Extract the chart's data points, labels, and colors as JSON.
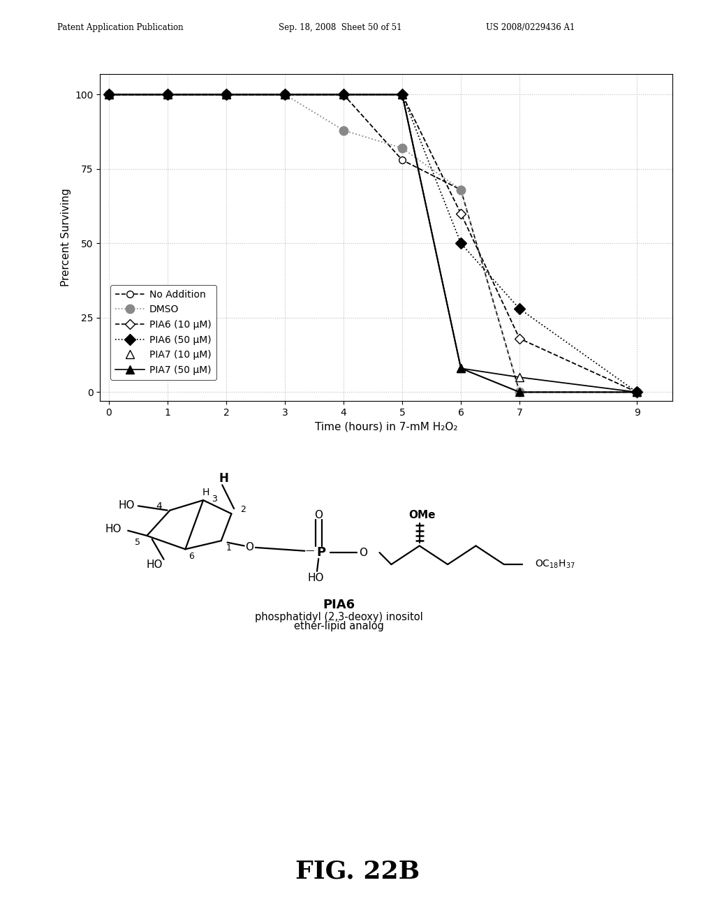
{
  "title_header_left": "Patent Application Publication",
  "title_header_mid": "Sep. 18, 2008  Sheet 50 of 51",
  "title_header_right": "US 2008/0229436 A1",
  "xlabel": "Time (hours) in 7-mM H₂O₂",
  "ylabel": "Prercent Surviving",
  "xticks": [
    0,
    1,
    2,
    3,
    4,
    5,
    6,
    7,
    9
  ],
  "yticks": [
    0,
    25,
    50,
    75,
    100
  ],
  "xlim": [
    -0.15,
    9.6
  ],
  "ylim": [
    -3,
    107
  ],
  "series": [
    {
      "label": "No Addition",
      "x": [
        0,
        1,
        2,
        3,
        4,
        5,
        6,
        7,
        9
      ],
      "y": [
        100,
        100,
        100,
        100,
        100,
        78,
        68,
        0,
        0
      ],
      "linestyle": "--",
      "marker": "o",
      "markerfacecolor": "white",
      "markeredgecolor": "black",
      "color": "black",
      "markersize": 7,
      "linewidth": 1.3
    },
    {
      "label": "DMSO",
      "x": [
        0,
        1,
        2,
        3,
        4,
        5,
        6,
        7,
        9
      ],
      "y": [
        100,
        100,
        100,
        100,
        88,
        82,
        68,
        0,
        0
      ],
      "linestyle": "dotted",
      "marker": "o",
      "markerfacecolor": "#888888",
      "markeredgecolor": "#888888",
      "color": "#888888",
      "markersize": 9,
      "linewidth": 1.3
    },
    {
      "label": "PIA6 (10 μM)",
      "x": [
        0,
        1,
        2,
        3,
        4,
        5,
        6,
        7,
        9
      ],
      "y": [
        100,
        100,
        100,
        100,
        100,
        100,
        60,
        18,
        0
      ],
      "linestyle": "--",
      "marker": "D",
      "markerfacecolor": "white",
      "markeredgecolor": "black",
      "color": "black",
      "markersize": 7,
      "linewidth": 1.3
    },
    {
      "label": "PIA6 (50 μM)",
      "x": [
        0,
        1,
        2,
        3,
        4,
        5,
        6,
        7,
        9
      ],
      "y": [
        100,
        100,
        100,
        100,
        100,
        100,
        50,
        28,
        0
      ],
      "linestyle": "dotted",
      "marker": "D",
      "markerfacecolor": "black",
      "markeredgecolor": "black",
      "color": "black",
      "markersize": 8,
      "linewidth": 1.3
    },
    {
      "label": "PIA7 (10 μM)",
      "x": [
        0,
        1,
        2,
        3,
        4,
        5,
        6,
        7,
        9
      ],
      "y": [
        100,
        100,
        100,
        100,
        100,
        100,
        8,
        5,
        0
      ],
      "linestyle": "-",
      "marker": "^",
      "markerfacecolor": "white",
      "markeredgecolor": "black",
      "color": "black",
      "markersize": 8,
      "linewidth": 1.3
    },
    {
      "label": "PIA7 (50 μM)",
      "x": [
        0,
        1,
        2,
        3,
        4,
        5,
        6,
        7,
        9
      ],
      "y": [
        100,
        100,
        100,
        100,
        100,
        100,
        8,
        0,
        0
      ],
      "linestyle": "-",
      "marker": "^",
      "markerfacecolor": "black",
      "markeredgecolor": "black",
      "color": "black",
      "markersize": 8,
      "linewidth": 1.5
    }
  ],
  "legend_entries": [
    {
      "label": "No Addition",
      "linestyle": "--",
      "marker": "o",
      "mfc": "white",
      "mec": "black",
      "color": "black",
      "ms": 7
    },
    {
      "label": "DMSO",
      "linestyle": "dotted",
      "marker": "o",
      "mfc": "#888888",
      "mec": "#888888",
      "color": "#888888",
      "ms": 9
    },
    {
      "label": "PIA6 (10 μM)",
      "linestyle": "--",
      "marker": "D",
      "mfc": "white",
      "mec": "black",
      "color": "black",
      "ms": 7
    },
    {
      "label": "PIA6 (50 μM)",
      "linestyle": "dotted",
      "marker": "D",
      "mfc": "black",
      "mec": "black",
      "color": "black",
      "ms": 8
    },
    {
      "label": "PIA7 (10 μM)",
      "linestyle": "none",
      "marker": "^",
      "mfc": "white",
      "mec": "black",
      "color": "black",
      "ms": 8
    },
    {
      "label": "PIA7 (50 μM)",
      "linestyle": "-",
      "marker": "^",
      "mfc": "black",
      "mec": "black",
      "color": "black",
      "ms": 8
    }
  ],
  "fig_label": "FIG. 22B",
  "chem_label": "PIA6",
  "chem_desc_line1": "phosphatidyl (2,3-deoxy) inositol",
  "chem_desc_line2": "ether-lipid analog",
  "background_color": "#ffffff",
  "grid_color": "#bbbbbb",
  "legend_fontsize": 10,
  "axis_fontsize": 11,
  "tick_fontsize": 10
}
